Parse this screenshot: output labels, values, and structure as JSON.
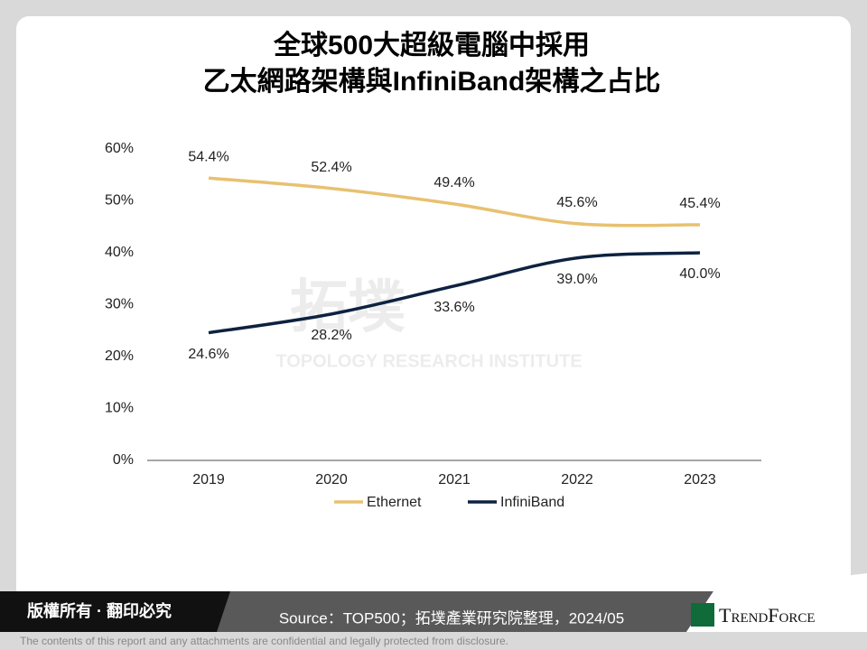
{
  "chart_data": {
    "type": "line",
    "title": [
      "全球500大超級電腦中採用",
      "乙太網路架構與InfiniBand架構之占比"
    ],
    "categories": [
      "2019",
      "2020",
      "2021",
      "2022",
      "2023"
    ],
    "series": [
      {
        "name": "Ethernet",
        "color": "#e8c170",
        "values": [
          54.4,
          52.4,
          49.4,
          45.6,
          45.4
        ],
        "value_labels": [
          "54.4%",
          "52.4%",
          "49.4%",
          "45.6%",
          "45.4%"
        ]
      },
      {
        "name": "InfiniBand",
        "color": "#0d2240",
        "values": [
          24.6,
          28.2,
          33.6,
          39.0,
          40.0
        ],
        "value_labels": [
          "24.6%",
          "28.2%",
          "33.6%",
          "39.0%",
          "40.0%"
        ]
      }
    ],
    "ylim": [
      0,
      60
    ],
    "yticks": [
      {
        "value": 0,
        "label": "0%"
      },
      {
        "value": 10,
        "label": "10%"
      },
      {
        "value": 20,
        "label": "20%"
      },
      {
        "value": 30,
        "label": "30%"
      },
      {
        "value": 40,
        "label": "40%"
      },
      {
        "value": 50,
        "label": "50%"
      },
      {
        "value": 60,
        "label": "60%"
      }
    ],
    "grid": false,
    "legend": "bottom"
  },
  "watermark": {
    "cn": "拓墣",
    "en": "TOPOLOGY RESEARCH INSTITUTE"
  },
  "footer": {
    "copyright": "版權所有 · 翻印必究",
    "source": "Source：TOP500；拓墣產業研究院整理，2024/05",
    "brand": "TrendForce"
  },
  "disclaimer": "The contents of this report and any attachments are confidential and legally protected from disclosure."
}
